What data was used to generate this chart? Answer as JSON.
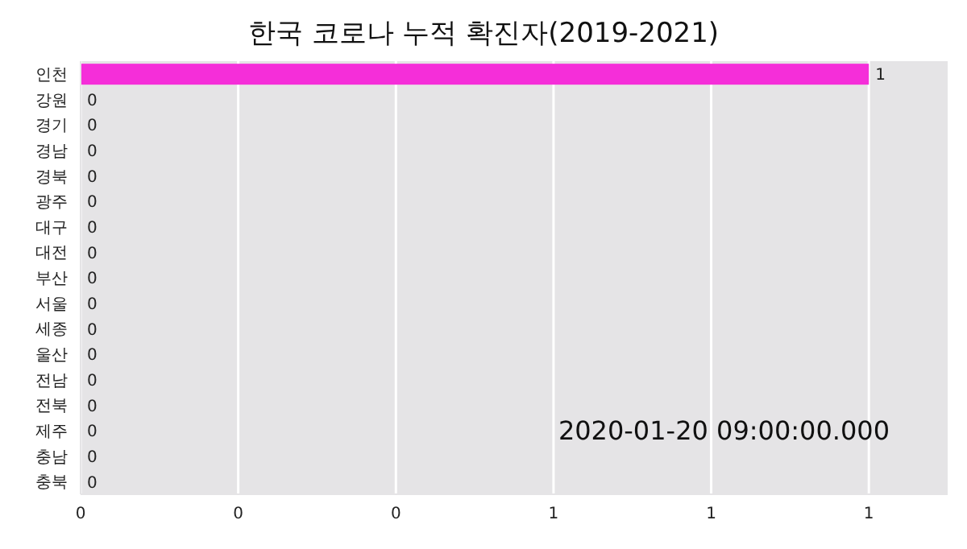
{
  "chart_data": {
    "type": "bar",
    "orientation": "horizontal",
    "title": "한국 코로나 누적 확진자(2019-2021)",
    "categories": [
      "인천",
      "강원",
      "경기",
      "경남",
      "경북",
      "광주",
      "대구",
      "대전",
      "부산",
      "서울",
      "세종",
      "울산",
      "전남",
      "전북",
      "제주",
      "충남",
      "충북"
    ],
    "values": [
      1,
      0,
      0,
      0,
      0,
      0,
      0,
      0,
      0,
      0,
      0,
      0,
      0,
      0,
      0,
      0,
      0
    ],
    "color": "#f52ed9",
    "xlim": [
      0,
      1.1
    ],
    "xticks": [
      0,
      {
        "value": 0.2,
        "label": "0"
      },
      {
        "value": 0.4,
        "label": "0"
      },
      {
        "value": 0.6,
        "label": "1"
      },
      {
        "value": 0.8,
        "label": "1"
      },
      1
    ],
    "grid": "x",
    "data_labels": true,
    "annotations": [
      "2020-01-20 09:00:00.000"
    ]
  }
}
